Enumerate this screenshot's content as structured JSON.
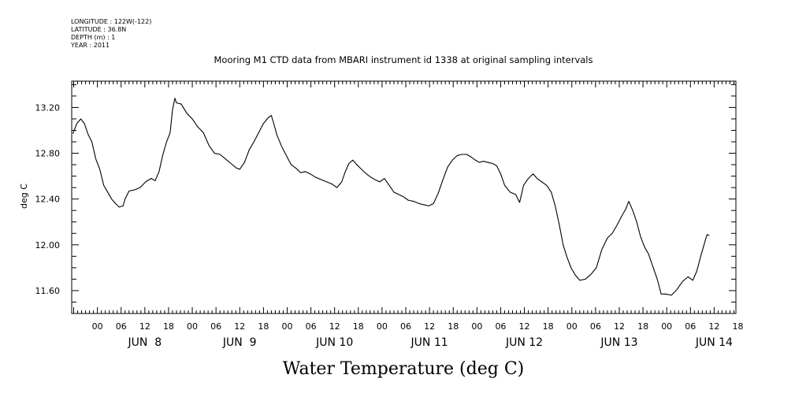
{
  "header": {
    "meta_lines": [
      "LONGITUDE : 122W(-122)",
      "LATITUDE : 36.8N",
      "DEPTH (m) : 1",
      "YEAR : 2011"
    ]
  },
  "chart_data": {
    "type": "line",
    "title": "Mooring M1 CTD data from MBARI instrument id 1338 at original sampling intervals",
    "xlabel": "Water Temperature (deg C)",
    "ylabel": "deg C",
    "xlim_hours": [
      -6.5,
      161.5
    ],
    "ylim": [
      11.4,
      13.43
    ],
    "y_ticks": [
      11.6,
      12.0,
      12.4,
      12.8,
      13.2
    ],
    "y_tick_labels": [
      "11.60",
      "12.00",
      "12.40",
      "12.80",
      "13.20"
    ],
    "x_hour_labels": [
      {
        "hour": 0,
        "label": "00"
      },
      {
        "hour": 6,
        "label": "06"
      },
      {
        "hour": 12,
        "label": "12"
      },
      {
        "hour": 18,
        "label": "18"
      },
      {
        "hour": 24,
        "label": "00"
      },
      {
        "hour": 30,
        "label": "06"
      },
      {
        "hour": 36,
        "label": "12"
      },
      {
        "hour": 42,
        "label": "18"
      },
      {
        "hour": 48,
        "label": "00"
      },
      {
        "hour": 54,
        "label": "06"
      },
      {
        "hour": 60,
        "label": "12"
      },
      {
        "hour": 66,
        "label": "18"
      },
      {
        "hour": 72,
        "label": "00"
      },
      {
        "hour": 78,
        "label": "06"
      },
      {
        "hour": 84,
        "label": "12"
      },
      {
        "hour": 90,
        "label": "18"
      },
      {
        "hour": 96,
        "label": "00"
      },
      {
        "hour": 102,
        "label": "06"
      },
      {
        "hour": 108,
        "label": "12"
      },
      {
        "hour": 114,
        "label": "18"
      },
      {
        "hour": 120,
        "label": "00"
      },
      {
        "hour": 126,
        "label": "06"
      },
      {
        "hour": 132,
        "label": "12"
      },
      {
        "hour": 138,
        "label": "18"
      },
      {
        "hour": 144,
        "label": "00"
      },
      {
        "hour": 150,
        "label": "06"
      },
      {
        "hour": 156,
        "label": "12"
      },
      {
        "hour": 162,
        "label": "18"
      }
    ],
    "date_labels": [
      {
        "hour": 12,
        "label": "JUN  8"
      },
      {
        "hour": 36,
        "label": "JUN  9"
      },
      {
        "hour": 60,
        "label": "JUN 10"
      },
      {
        "hour": 84,
        "label": "JUN 11"
      },
      {
        "hour": 108,
        "label": "JUN 12"
      },
      {
        "hour": 132,
        "label": "JUN 13"
      },
      {
        "hour": 156,
        "label": "JUN 14"
      }
    ],
    "series": [
      {
        "color": "#000000",
        "points": [
          [
            -6.2,
            12.97
          ],
          [
            -5.2,
            13.06
          ],
          [
            -4.2,
            13.1
          ],
          [
            -3.3,
            13.06
          ],
          [
            -2.3,
            12.96
          ],
          [
            -1.4,
            12.9
          ],
          [
            -0.4,
            12.75
          ],
          [
            0.6,
            12.66
          ],
          [
            1.6,
            12.52
          ],
          [
            2.6,
            12.46
          ],
          [
            3.6,
            12.4
          ],
          [
            4.6,
            12.36
          ],
          [
            5.5,
            12.33
          ],
          [
            6.5,
            12.34
          ],
          [
            7.0,
            12.4
          ],
          [
            8.0,
            12.47
          ],
          [
            9.4,
            12.48
          ],
          [
            10.8,
            12.5
          ],
          [
            12.2,
            12.55
          ],
          [
            13.6,
            12.58
          ],
          [
            14.6,
            12.56
          ],
          [
            15.6,
            12.64
          ],
          [
            16.5,
            12.78
          ],
          [
            17.5,
            12.9
          ],
          [
            18.4,
            12.98
          ],
          [
            19.0,
            13.18
          ],
          [
            19.6,
            13.28
          ],
          [
            20.0,
            13.24
          ],
          [
            21.2,
            13.23
          ],
          [
            22.6,
            13.15
          ],
          [
            24.0,
            13.1
          ],
          [
            25.4,
            13.03
          ],
          [
            26.8,
            12.98
          ],
          [
            28.2,
            12.87
          ],
          [
            29.6,
            12.8
          ],
          [
            31.0,
            12.79
          ],
          [
            32.4,
            12.75
          ],
          [
            33.8,
            12.71
          ],
          [
            35.2,
            12.67
          ],
          [
            36.0,
            12.66
          ],
          [
            37.2,
            12.72
          ],
          [
            38.4,
            12.83
          ],
          [
            39.6,
            12.9
          ],
          [
            40.8,
            12.98
          ],
          [
            42.0,
            13.06
          ],
          [
            43.2,
            13.11
          ],
          [
            44.0,
            13.13
          ],
          [
            44.6,
            13.06
          ],
          [
            45.4,
            12.96
          ],
          [
            46.6,
            12.86
          ],
          [
            47.8,
            12.78
          ],
          [
            49.0,
            12.7
          ],
          [
            50.2,
            12.67
          ],
          [
            51.4,
            12.63
          ],
          [
            52.6,
            12.64
          ],
          [
            53.8,
            12.62
          ],
          [
            55.2,
            12.59
          ],
          [
            56.6,
            12.57
          ],
          [
            58.0,
            12.55
          ],
          [
            59.4,
            12.53
          ],
          [
            60.6,
            12.5
          ],
          [
            61.8,
            12.55
          ],
          [
            62.6,
            12.63
          ],
          [
            63.6,
            12.71
          ],
          [
            64.6,
            12.74
          ],
          [
            65.6,
            12.7
          ],
          [
            66.8,
            12.66
          ],
          [
            68.0,
            12.62
          ],
          [
            69.2,
            12.59
          ],
          [
            70.2,
            12.57
          ],
          [
            71.4,
            12.55
          ],
          [
            72.6,
            12.58
          ],
          [
            73.8,
            12.52
          ],
          [
            75.0,
            12.46
          ],
          [
            76.2,
            12.44
          ],
          [
            77.4,
            12.42
          ],
          [
            78.6,
            12.39
          ],
          [
            80.0,
            12.38
          ],
          [
            81.4,
            12.36
          ],
          [
            82.6,
            12.35
          ],
          [
            83.8,
            12.34
          ],
          [
            85.0,
            12.36
          ],
          [
            86.2,
            12.45
          ],
          [
            87.4,
            12.57
          ],
          [
            88.6,
            12.68
          ],
          [
            89.8,
            12.74
          ],
          [
            91.0,
            12.78
          ],
          [
            92.2,
            12.79
          ],
          [
            93.4,
            12.79
          ],
          [
            94.4,
            12.77
          ],
          [
            95.6,
            12.74
          ],
          [
            96.6,
            12.72
          ],
          [
            97.6,
            12.73
          ],
          [
            98.8,
            12.72
          ],
          [
            100.0,
            12.71
          ],
          [
            101.0,
            12.69
          ],
          [
            102.0,
            12.62
          ],
          [
            103.0,
            12.52
          ],
          [
            104.4,
            12.46
          ],
          [
            105.8,
            12.44
          ],
          [
            106.8,
            12.37
          ],
          [
            107.8,
            12.52
          ],
          [
            109.0,
            12.58
          ],
          [
            110.2,
            12.62
          ],
          [
            111.2,
            12.58
          ],
          [
            112.4,
            12.55
          ],
          [
            113.6,
            12.52
          ],
          [
            114.8,
            12.46
          ],
          [
            115.8,
            12.34
          ],
          [
            116.8,
            12.18
          ],
          [
            117.8,
            12.0
          ],
          [
            118.8,
            11.89
          ],
          [
            119.8,
            11.8
          ],
          [
            120.8,
            11.74
          ],
          [
            122.0,
            11.69
          ],
          [
            123.4,
            11.7
          ],
          [
            124.8,
            11.74
          ],
          [
            126.2,
            11.8
          ],
          [
            127.6,
            11.96
          ],
          [
            129.0,
            12.06
          ],
          [
            130.2,
            12.1
          ],
          [
            131.4,
            12.17
          ],
          [
            132.6,
            12.25
          ],
          [
            133.6,
            12.31
          ],
          [
            134.4,
            12.38
          ],
          [
            135.4,
            12.3
          ],
          [
            136.4,
            12.2
          ],
          [
            137.4,
            12.07
          ],
          [
            138.4,
            11.98
          ],
          [
            139.4,
            11.92
          ],
          [
            140.4,
            11.82
          ],
          [
            141.6,
            11.7
          ],
          [
            142.6,
            11.57
          ],
          [
            143.8,
            11.57
          ],
          [
            145.2,
            11.56
          ],
          [
            146.6,
            11.61
          ],
          [
            148.0,
            11.68
          ],
          [
            149.4,
            11.72
          ],
          [
            150.6,
            11.69
          ],
          [
            151.6,
            11.77
          ],
          [
            152.6,
            11.9
          ],
          [
            153.6,
            12.02
          ],
          [
            154.2,
            12.09
          ],
          [
            154.8,
            12.08
          ]
        ]
      }
    ]
  }
}
